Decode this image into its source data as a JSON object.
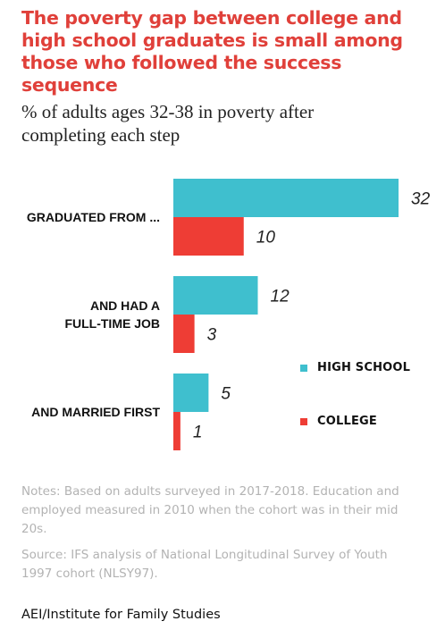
{
  "title": "The poverty gap between college and high school graduates is small among those who followed the success sequence",
  "subtitle": "% of adults ages 32-38 in poverty after completing each step",
  "colors": {
    "high_school": "#3fbfce",
    "college": "#ee3d35",
    "title": "#e0403a"
  },
  "chart_data": {
    "type": "bar",
    "orientation": "horizontal",
    "categories": [
      [
        "GRADUATED FROM ..."
      ],
      [
        "AND HAD A",
        "FULL-TIME JOB"
      ],
      [
        "AND MARRIED FIRST"
      ]
    ],
    "series": [
      {
        "name": "HIGH SCHOOL",
        "values": [
          32,
          12,
          5
        ]
      },
      {
        "name": "COLLEGE",
        "values": [
          10,
          3,
          1
        ]
      }
    ],
    "xlim": [
      0,
      32
    ],
    "grid": false,
    "legend_position": "right"
  },
  "notes": [
    "Notes: Based on adults surveyed in 2017-2018. Education and employed measured in 2010 when the cohort was in their mid 20s.",
    "Source: IFS analysis of National Longitudinal Survey of Youth 1997 cohort (NLSY97)."
  ],
  "footer": "AEI/Institute for Family Studies"
}
